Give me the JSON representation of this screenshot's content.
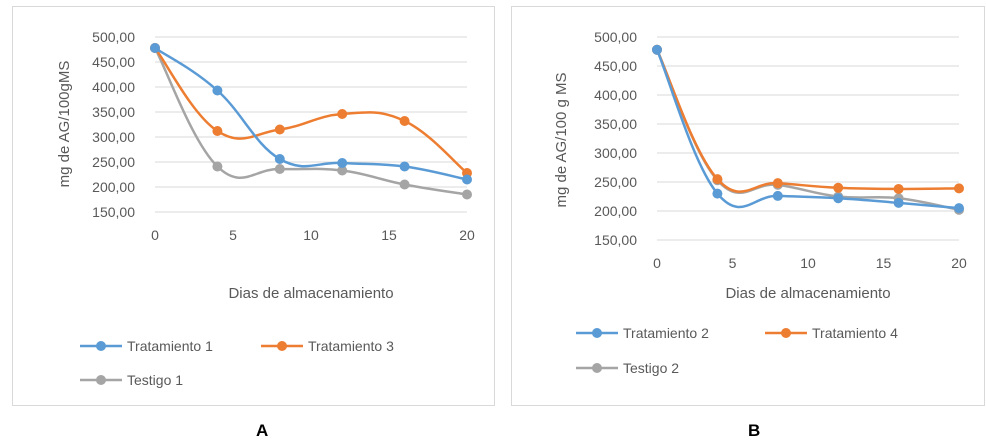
{
  "chart_data": [
    {
      "id": "A",
      "type": "line",
      "panel_label": "A",
      "xlabel": "Dias de almacenamiento",
      "ylabel": "mg de AG/100gMS",
      "xlim": [
        0,
        20
      ],
      "ylim": [
        150,
        500
      ],
      "xticks": [
        "0",
        "5",
        "10",
        "15",
        "20"
      ],
      "yticks": [
        "150,00",
        "200,00",
        "250,00",
        "300,00",
        "350,00",
        "400,00",
        "450,00",
        "500,00"
      ],
      "grid": "horizontal",
      "legend_position": "bottom",
      "x": [
        0,
        4,
        8,
        12,
        16,
        20
      ],
      "series": [
        {
          "name": "Tratamiento 1",
          "color": "#5b9bd5",
          "values": [
            478,
            393,
            256,
            248,
            241,
            215
          ]
        },
        {
          "name": "Tratamiento 3",
          "color": "#ed7d31",
          "values": [
            478,
            312,
            315,
            346,
            332,
            228
          ]
        },
        {
          "name": "Testigo 1",
          "color": "#a5a5a5",
          "values": [
            478,
            241,
            236,
            233,
            205,
            185
          ]
        }
      ]
    },
    {
      "id": "B",
      "type": "line",
      "panel_label": "B",
      "xlabel": "Dias de almacenamiento",
      "ylabel": "mg de AG/100 g MS",
      "xlim": [
        0,
        20
      ],
      "ylim": [
        150,
        500
      ],
      "xticks": [
        "0",
        "5",
        "10",
        "15",
        "20"
      ],
      "yticks": [
        "150,00",
        "200,00",
        "250,00",
        "300,00",
        "350,00",
        "400,00",
        "450,00",
        "500,00"
      ],
      "grid": "horizontal",
      "legend_position": "bottom",
      "x": [
        0,
        4,
        8,
        12,
        16,
        20
      ],
      "series": [
        {
          "name": "Tratamiento 2",
          "color": "#5b9bd5",
          "values": [
            478,
            230,
            226,
            222,
            214,
            205
          ]
        },
        {
          "name": "Tratamiento 4",
          "color": "#ed7d31",
          "values": [
            478,
            255,
            248,
            240,
            238,
            239
          ]
        },
        {
          "name": "Testigo 2",
          "color": "#a5a5a5",
          "values": [
            478,
            253,
            245,
            225,
            222,
            202
          ]
        }
      ]
    }
  ]
}
